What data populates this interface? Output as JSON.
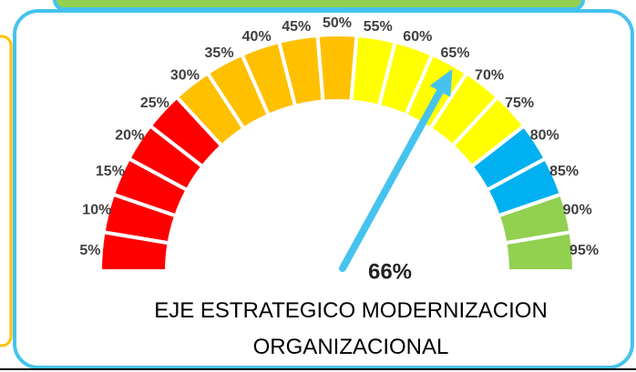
{
  "chart_data": {
    "type": "gauge",
    "title": "EJE ESTRATEGICO MODERNIZACION ORGANIZACIONAL",
    "categories": [
      "5%",
      "10%",
      "15%",
      "20%",
      "25%",
      "30%",
      "35%",
      "40%",
      "45%",
      "50%",
      "55%",
      "60%",
      "65%",
      "70%",
      "75%",
      "80%",
      "85%",
      "90%",
      "95%"
    ],
    "colors": [
      "#ff0000",
      "#ff0000",
      "#ff0000",
      "#ff0000",
      "#ff0000",
      "#ffc000",
      "#ffc000",
      "#ffc000",
      "#ffc000",
      "#ffc000",
      "#ffff00",
      "#ffff00",
      "#ffff00",
      "#ffff00",
      "#ffff00",
      "#00b0f0",
      "#00b0f0",
      "#92d050",
      "#92d050"
    ],
    "value": 66,
    "value_label": "66%",
    "needle_color": "#45c3ee",
    "ylim": [
      0,
      100
    ]
  }
}
